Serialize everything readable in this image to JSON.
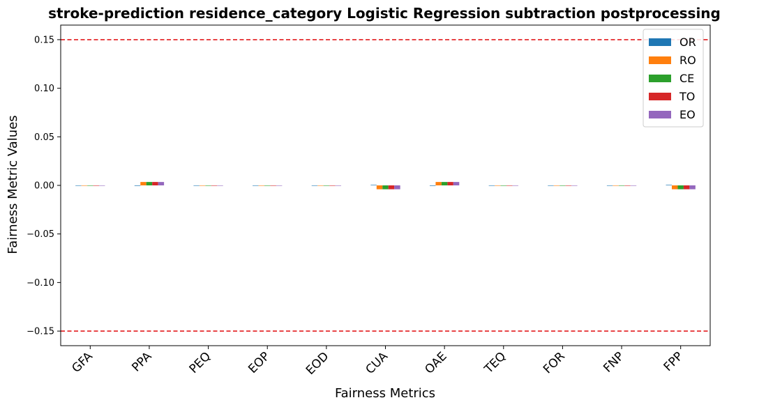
{
  "chart_data": {
    "type": "bar",
    "title": "stroke-prediction residence_category Logistic Regression subtraction postprocessing",
    "xlabel": "Fairness Metrics",
    "ylabel": "Fairness Metric Values",
    "categories": [
      "GFA",
      "PPA",
      "PEQ",
      "EOP",
      "EOD",
      "CUA",
      "OAE",
      "TEQ",
      "FOR",
      "FNP",
      "FPP"
    ],
    "ylim": [
      -0.165,
      0.165
    ],
    "yticks": [
      0.15,
      0.1,
      0.05,
      0.0,
      -0.05,
      -0.1,
      -0.15
    ],
    "ytick_labels": [
      "0.15",
      "0.10",
      "0.05",
      "0.00",
      "−0.05",
      "−0.10",
      "−0.15"
    ],
    "reference_lines": [
      {
        "value": 0.15,
        "color": "#e31a1c",
        "style": "dashed"
      },
      {
        "value": -0.15,
        "color": "#e31a1c",
        "style": "dashed"
      }
    ],
    "legend_position": "top-right",
    "grid": false,
    "series": [
      {
        "name": "OR",
        "color": "#1f77b4",
        "values": [
          0,
          -0.0005,
          0,
          0,
          0,
          0.0005,
          -0.0005,
          0,
          0,
          0,
          0.0005
        ]
      },
      {
        "name": "RO",
        "color": "#ff7f0e",
        "values": [
          0,
          0.0035,
          0,
          0,
          0,
          -0.004,
          0.0035,
          0,
          0,
          0,
          -0.004
        ]
      },
      {
        "name": "CE",
        "color": "#2ca02c",
        "values": [
          0,
          0.0035,
          0,
          0,
          0,
          -0.004,
          0.0035,
          0,
          0,
          0,
          -0.004
        ]
      },
      {
        "name": "TO",
        "color": "#d62728",
        "values": [
          0,
          0.0035,
          0,
          0,
          0,
          -0.004,
          0.0035,
          0,
          0,
          0,
          -0.004
        ]
      },
      {
        "name": "EO",
        "color": "#9467bd",
        "values": [
          0,
          0.0035,
          0,
          0,
          0,
          -0.004,
          0.0035,
          0,
          0,
          0,
          -0.004
        ]
      }
    ]
  }
}
